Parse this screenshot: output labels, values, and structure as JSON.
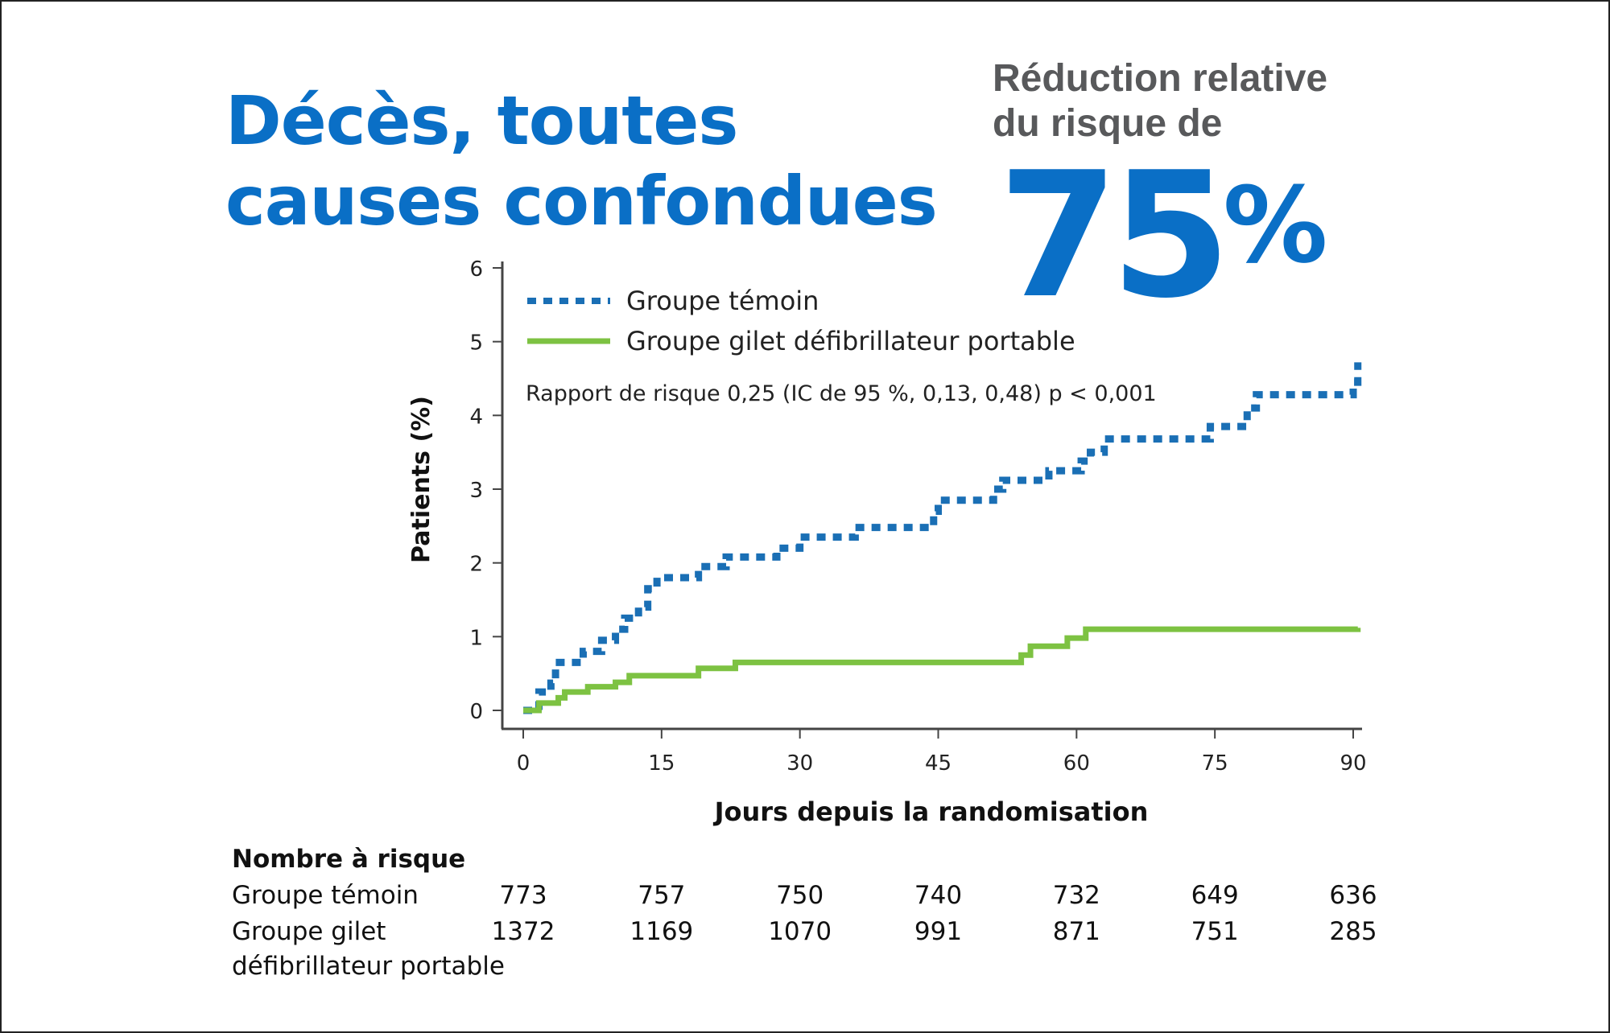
{
  "title": "Décès, toutes causes confondues",
  "highlight": {
    "label": "Réduction relative du risque de",
    "value": "75",
    "unit": "%"
  },
  "colors": {
    "control": "#1a6fb5",
    "device": "#7dc242",
    "title": "#0a6fc6",
    "subtitle": "#58595b"
  },
  "chart_data": {
    "type": "line",
    "step": true,
    "xlabel": "Jours depuis la randomisation",
    "ylabel": "Patients (%)",
    "xlim": [
      0,
      90
    ],
    "ylim": [
      0,
      6
    ],
    "xticks": [
      0,
      15,
      30,
      45,
      60,
      75,
      90
    ],
    "yticks": [
      0,
      1,
      2,
      3,
      4,
      5,
      6
    ],
    "grid": false,
    "legend_position": "top-left",
    "annotation": "Rapport de risque 0,25 (IC de 95 %, 0,13, 0,48) p < 0,001",
    "series": [
      {
        "name": "Groupe témoin",
        "style": "dotted",
        "x": [
          0,
          1.7,
          3,
          3.5,
          6.5,
          8.5,
          10,
          11,
          12.5,
          13.5,
          14.5,
          19,
          22,
          27.5,
          30,
          36,
          44.5,
          45,
          51,
          52,
          57,
          60.5,
          61.5,
          63,
          74.5,
          78.5,
          79.5,
          90,
          90.5
        ],
        "y": [
          0,
          0.25,
          0.37,
          0.65,
          0.8,
          0.95,
          1.1,
          1.25,
          1.4,
          1.65,
          1.8,
          1.95,
          2.08,
          2.2,
          2.35,
          2.48,
          2.7,
          2.85,
          3.0,
          3.12,
          3.25,
          3.38,
          3.5,
          3.68,
          3.85,
          4.1,
          4.28,
          4.45,
          4.72
        ]
      },
      {
        "name": "Groupe gilet défibrillateur portable",
        "style": "solid",
        "x": [
          0,
          1.7,
          3.8,
          4.5,
          7,
          10,
          11.5,
          19,
          23,
          54,
          55,
          59,
          61,
          90.5
        ],
        "y": [
          0,
          0.1,
          0.17,
          0.25,
          0.32,
          0.38,
          0.47,
          0.57,
          0.65,
          0.75,
          0.87,
          0.98,
          1.1,
          1.12
        ]
      }
    ]
  },
  "risk_table": {
    "title": "Nombre à risque",
    "rows": [
      {
        "label": "Groupe témoin",
        "label2": "",
        "values": [
          "773",
          "757",
          "750",
          "740",
          "732",
          "649",
          "636"
        ]
      },
      {
        "label": "Groupe gilet",
        "label2": "défibrillateur portable",
        "values": [
          "1372",
          "1169",
          "1070",
          "991",
          "871",
          "751",
          "285"
        ]
      }
    ]
  }
}
